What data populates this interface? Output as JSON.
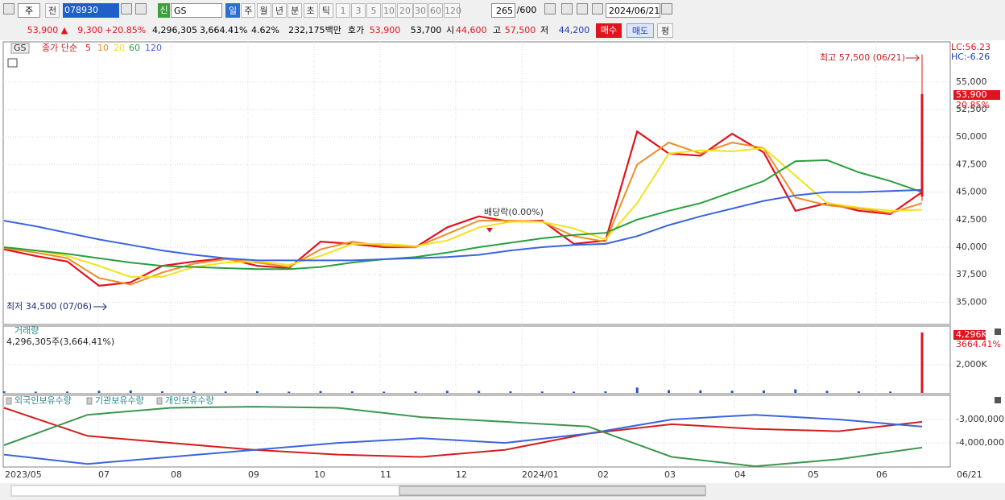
{
  "toolbar": {
    "period_selector": "주",
    "prev": "전",
    "code": "078930",
    "new_badge": "신",
    "name": "GS",
    "units": [
      "일",
      "주",
      "월",
      "년",
      "분",
      "초",
      "틱"
    ],
    "intervals": [
      "1",
      "3",
      "5",
      "10",
      "20",
      "30",
      "60",
      "120"
    ],
    "count": "265",
    "max_count": "/600",
    "date": "2024/06/21"
  },
  "quote": {
    "price": "53,900 ▲",
    "change": "9,300",
    "change_rate": "+20.85%",
    "volume": "4,296,305",
    "volume_rate": "3,664.41%",
    "turnover": "4.62%",
    "amount": "232,175백만",
    "bid_ask_label": "호가",
    "ask": "53,900",
    "bid": "53,700",
    "open_label": "시",
    "open": "44,600",
    "high_label": "고",
    "high": "57,500",
    "low_label": "저",
    "low": "44,200",
    "buy": "매수",
    "sell": "매도",
    "avg": "평"
  },
  "chart_data": [
    {
      "type": "line",
      "legend_name": "GS",
      "legend_title": "종가 단순",
      "ylim": [
        32980,
        58640
      ],
      "yticks": [
        {
          "value": 35000,
          "label": "35,000"
        },
        {
          "value": 37500,
          "label": "37,500"
        },
        {
          "value": 40000,
          "label": "40,000"
        },
        {
          "value": 42500,
          "label": "42,500"
        },
        {
          "value": 45000,
          "label": "45,000"
        },
        {
          "value": 47500,
          "label": "47,500"
        },
        {
          "value": 50000,
          "label": "50,000"
        },
        {
          "value": 52500,
          "label": "52,500"
        },
        {
          "value": 55000,
          "label": "55,000"
        }
      ],
      "grid": true,
      "series": [
        {
          "name": "5",
          "color": "#e0141e",
          "values": [
            39800,
            39200,
            38700,
            36500,
            36800,
            38300,
            38700,
            39000,
            38300,
            38100,
            40500,
            40300,
            40000,
            40000,
            41800,
            42800,
            42300,
            42400,
            40300,
            40600,
            50500,
            48500,
            48300,
            50300,
            48600,
            43300,
            44000,
            43300,
            43000,
            45000
          ]
        },
        {
          "name": "10",
          "color": "#f08c28",
          "values": [
            39900,
            39500,
            39000,
            37200,
            36600,
            37700,
            38500,
            38900,
            38600,
            38200,
            39800,
            40500,
            40100,
            40000,
            41200,
            42400,
            42400,
            42300,
            41000,
            40500,
            47500,
            49500,
            48500,
            49500,
            49000,
            44500,
            43800,
            43500,
            43100,
            44000
          ]
        },
        {
          "name": "20",
          "color": "#f2e21c",
          "values": [
            40000,
            39700,
            39200,
            38300,
            37300,
            37300,
            38200,
            38600,
            38700,
            38400,
            39200,
            40300,
            40300,
            40100,
            40600,
            41800,
            42300,
            42300,
            41700,
            40700,
            44000,
            48500,
            48800,
            48700,
            49000,
            46500,
            44000,
            43600,
            43300,
            43400
          ]
        },
        {
          "name": "60",
          "color": "#28a03c",
          "values": [
            40000,
            39700,
            39400,
            39000,
            38600,
            38300,
            38200,
            38100,
            38000,
            38000,
            38200,
            38600,
            38900,
            39100,
            39500,
            40000,
            40400,
            40800,
            41100,
            41300,
            42500,
            43300,
            44000,
            45000,
            46000,
            47800,
            47900,
            46800,
            46000,
            45000
          ]
        },
        {
          "name": "120",
          "color": "#3c64dc",
          "values": [
            42400,
            41900,
            41300,
            40700,
            40200,
            39700,
            39300,
            39000,
            38800,
            38800,
            38800,
            38800,
            38900,
            39000,
            39100,
            39300,
            39700,
            40000,
            40200,
            40300,
            41000,
            42000,
            42800,
            43500,
            44200,
            44700,
            45000,
            45000,
            45100,
            45200
          ]
        }
      ],
      "last_candle": {
        "open": 44600,
        "high": 57500,
        "low": 44200,
        "close": 53900,
        "color": "#e0141e"
      },
      "right_labels": {
        "lc": "LC:56.23",
        "hc": "HC:-6.26",
        "price": "53,900",
        "rate": "20.85%"
      },
      "annotations": {
        "high": "최고 57,500 (06/21)",
        "low": "최저 34,500 (07/06)",
        "dividend": "배당락(0.00%)"
      }
    },
    {
      "type": "bar",
      "title": "거래량",
      "subtitle": "4,296,305주(3,664.41%)",
      "color": "#3050c8",
      "last_color": "#e0141e",
      "ylim": [
        0,
        4743
      ],
      "yticks": [
        {
          "value": 2000,
          "label": "2,000K"
        }
      ],
      "values": [
        120,
        90,
        100,
        150,
        180,
        110,
        90,
        100,
        120,
        90,
        130,
        110,
        90,
        100,
        150,
        140,
        110,
        100,
        90,
        110,
        380,
        200,
        180,
        160,
        170,
        250,
        150,
        110,
        100,
        4296
      ],
      "right_labels": {
        "value": "4,296K",
        "rate": "3664.41%"
      }
    },
    {
      "type": "line",
      "ylim": [
        -5030000,
        -2000000
      ],
      "yticks": [
        {
          "value": -3000000,
          "label": "-3,000,000"
        },
        {
          "value": -4000000,
          "label": "-4,000,000"
        }
      ],
      "series": [
        {
          "name": "외국인보유수량",
          "color": "#d21e1e",
          "values": [
            -2500000,
            -3700000,
            -4000000,
            -4300000,
            -4500000,
            -4600000,
            -4300000,
            -3600000,
            -3200000,
            -3400000,
            -3500000,
            -3100000
          ]
        },
        {
          "name": "기관보유수량",
          "color": "#3c64dc",
          "values": [
            -4500000,
            -4900000,
            -4600000,
            -4300000,
            -4000000,
            -3800000,
            -4000000,
            -3600000,
            -3000000,
            -2800000,
            -3000000,
            -3300000
          ]
        },
        {
          "name": "개인보유수량",
          "color": "#3c9650",
          "values": [
            -4100000,
            -2800000,
            -2500000,
            -2450000,
            -2500000,
            -2900000,
            -3100000,
            -3300000,
            -4600000,
            -5000000,
            -4700000,
            -4200000
          ]
        }
      ]
    }
  ],
  "x_axis": {
    "labels": [
      "2023/05",
      "07",
      "08",
      "09",
      "10",
      "11",
      "12",
      "2024/01",
      "02",
      "03",
      "04",
      "05",
      "06"
    ],
    "last_date": "06/21"
  }
}
